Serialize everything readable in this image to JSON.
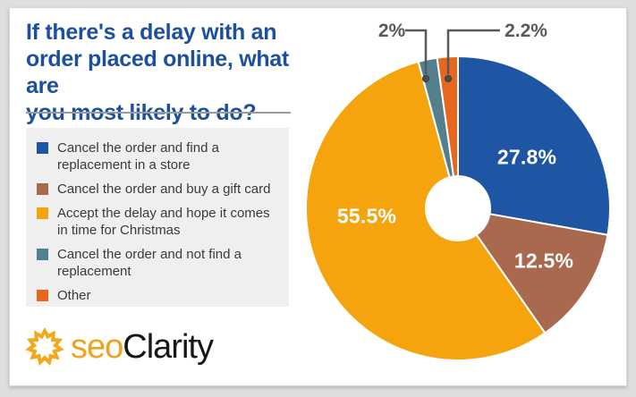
{
  "header": {
    "title_lines": [
      "If there's a delay with an",
      "order placed online, what are",
      "you most likely to do?"
    ]
  },
  "chart_data": {
    "type": "pie",
    "title": "If there's a delay with an order placed online, what are you most likely to do?",
    "donut": true,
    "start_angle_deg": 0,
    "direction": "clockwise",
    "slices": [
      {
        "label": "Cancel the order and find a replacement in a store",
        "value": 27.8,
        "display": "27.8%",
        "color": "#1e56a4"
      },
      {
        "label": "Cancel the order and buy a gift card",
        "value": 12.5,
        "display": "12.5%",
        "color": "#a8694e"
      },
      {
        "label": "Accept the delay and hope it comes in time for Christmas",
        "value": 55.5,
        "display": "55.5%",
        "color": "#f5a40e"
      },
      {
        "label": "Cancel the order and not find a replacement",
        "value": 2.0,
        "display": "2%",
        "color": "#54808d"
      },
      {
        "label": "Other",
        "value": 2.2,
        "display": "2.2%",
        "color": "#e8671f"
      }
    ],
    "legend_position": "left",
    "callout_color": "#58595b"
  },
  "logo": {
    "prefix": "seo",
    "suffix": "Clarity",
    "icon": "sunburst-icon",
    "gold": "#efa31d"
  }
}
